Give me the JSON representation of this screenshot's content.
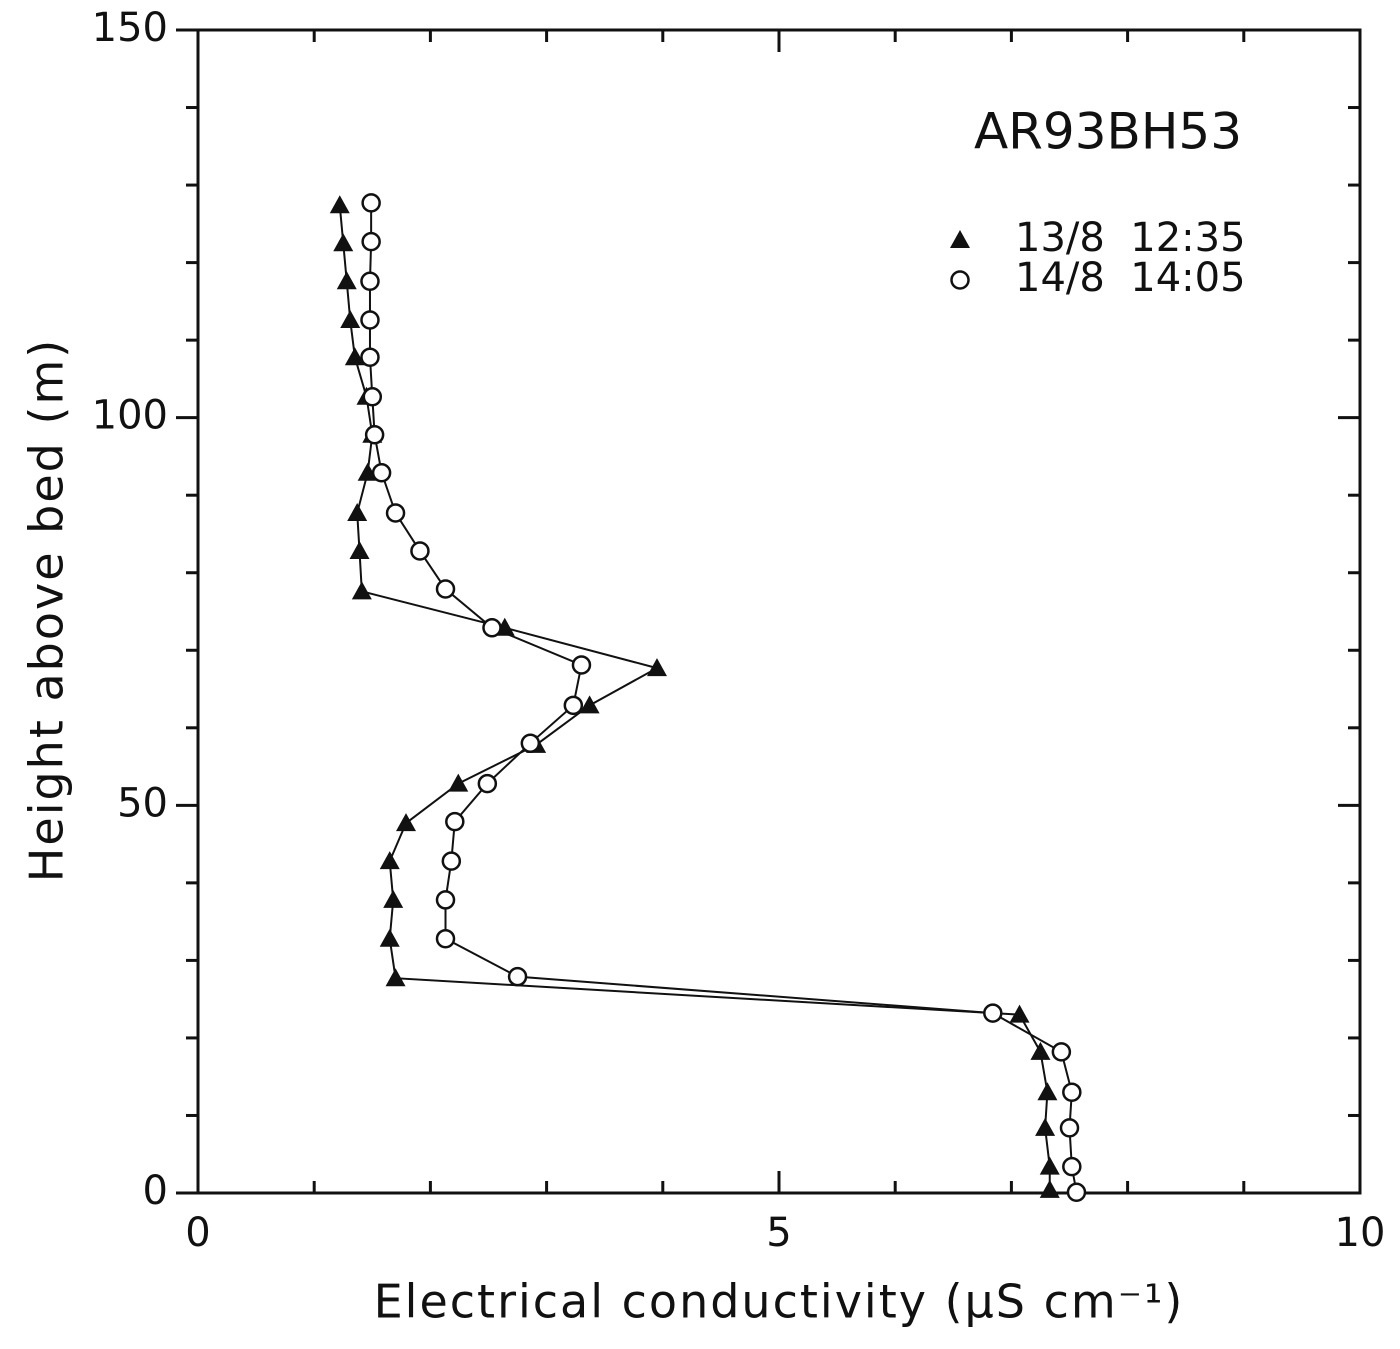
{
  "chart_data": {
    "type": "line",
    "xlabel": "Electrical conductivity (μS cm⁻¹)",
    "ylabel": "Height above bed (m)",
    "annotation": "AR93BH53",
    "xlim": [
      0,
      10
    ],
    "ylim": [
      0,
      150
    ],
    "xticks": [
      0,
      5,
      10
    ],
    "yticks": [
      0,
      50,
      100,
      150
    ],
    "xminorticks": [
      1,
      2,
      3,
      4,
      6,
      7,
      8,
      9
    ],
    "yminorticks": [
      10,
      20,
      30,
      40,
      60,
      70,
      80,
      90,
      110,
      120,
      130,
      140
    ],
    "legend": "upper right",
    "series": [
      {
        "name": "13/8  12:35",
        "color": "#111111",
        "marker": "triangle",
        "x": [
          1.22,
          1.25,
          1.28,
          1.31,
          1.35,
          1.45,
          1.5,
          1.46,
          1.37,
          1.39,
          1.41,
          2.64,
          3.95,
          3.37,
          2.91,
          2.24,
          1.79,
          1.65,
          1.68,
          1.65,
          1.7,
          7.07,
          7.25,
          7.31,
          7.29,
          7.33,
          7.33
        ],
        "y": [
          127.4,
          122.5,
          117.6,
          112.6,
          107.8,
          102.7,
          97.8,
          92.9,
          87.7,
          82.8,
          77.6,
          72.9,
          67.7,
          62.9,
          57.8,
          52.8,
          47.7,
          42.8,
          37.8,
          32.8,
          27.7,
          23.0,
          18.2,
          13.0,
          8.4,
          3.4,
          0.4
        ]
      },
      {
        "name": "14/8  14:05",
        "color": "#111111",
        "marker": "circle",
        "x": [
          1.49,
          1.49,
          1.48,
          1.48,
          1.48,
          1.5,
          1.52,
          1.58,
          1.7,
          1.91,
          2.13,
          2.53,
          3.3,
          3.23,
          2.86,
          2.49,
          2.21,
          2.18,
          2.13,
          2.13,
          2.75,
          6.84,
          7.43,
          7.52,
          7.5,
          7.52,
          7.56
        ],
        "y": [
          127.7,
          122.7,
          117.6,
          112.6,
          107.8,
          102.7,
          97.8,
          92.9,
          87.7,
          82.8,
          77.9,
          72.9,
          68.1,
          62.9,
          58.0,
          52.8,
          47.9,
          42.8,
          37.8,
          32.8,
          27.9,
          23.2,
          18.2,
          13.0,
          8.4,
          3.4,
          0.1
        ]
      }
    ]
  }
}
